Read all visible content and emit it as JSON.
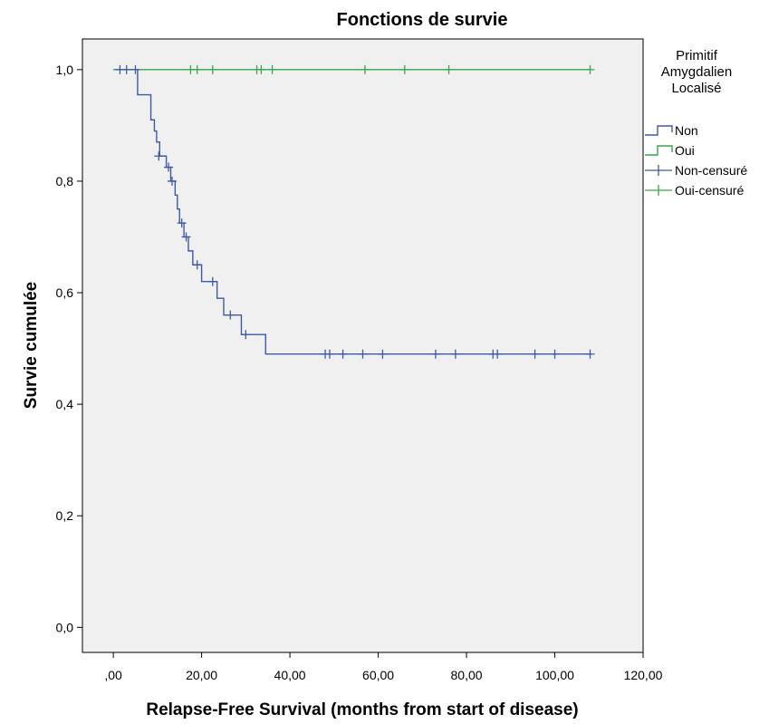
{
  "chart_data": {
    "type": "line",
    "subtype": "kaplan-meier step survival curve",
    "title": "Fonctions de survie",
    "xlabel": "Relapse-Free Survival (months from start of disease)",
    "ylabel": "Survie cumulée",
    "xlim": [
      -7,
      120
    ],
    "ylim": [
      -0.045,
      1.055
    ],
    "x_ticks": [
      0,
      20,
      40,
      60,
      80,
      100,
      120
    ],
    "x_tick_labels": [
      ",00",
      "20,00",
      "40,00",
      "60,00",
      "80,00",
      "100,00",
      "120,00"
    ],
    "y_ticks": [
      0,
      0.2,
      0.4,
      0.6,
      0.8,
      1.0
    ],
    "y_tick_labels": [
      "0,0",
      "0,2",
      "0,4",
      "0,6",
      "0,8",
      "1,0"
    ],
    "grid": false,
    "background_color": "#f0f0f0",
    "legend": {
      "title_lines": [
        "Primitif",
        "Amygdalien",
        "Localisé"
      ],
      "placement": "right, outside plot",
      "entries": [
        {
          "label": "Non",
          "kind": "step",
          "color": "#3d5aa8"
        },
        {
          "label": "Oui",
          "kind": "step",
          "color": "#3aa64a"
        },
        {
          "label": "Non-censuré",
          "kind": "censor",
          "color": "#3d5aa8"
        },
        {
          "label": "Oui-censuré",
          "kind": "censor",
          "color": "#3aa64a"
        }
      ]
    },
    "series": [
      {
        "name": "Non",
        "color": "#3d5aa8",
        "steps": [
          [
            0,
            1.0
          ],
          [
            5.5,
            0.955
          ],
          [
            8.5,
            0.91
          ],
          [
            9.3,
            0.89
          ],
          [
            9.8,
            0.87
          ],
          [
            10.5,
            0.845
          ],
          [
            12,
            0.825
          ],
          [
            13,
            0.8
          ],
          [
            14,
            0.775
          ],
          [
            14.5,
            0.75
          ],
          [
            15,
            0.725
          ],
          [
            16,
            0.7
          ],
          [
            17,
            0.675
          ],
          [
            18,
            0.65
          ],
          [
            20,
            0.62
          ],
          [
            23.5,
            0.59
          ],
          [
            25,
            0.56
          ],
          [
            29,
            0.525
          ],
          [
            34.5,
            0.49
          ],
          [
            108,
            0.49
          ]
        ],
        "censored": [
          [
            1.5,
            1.0
          ],
          [
            3,
            1.0
          ],
          [
            5,
            1.0
          ],
          [
            10.3,
            0.845
          ],
          [
            12.5,
            0.825
          ],
          [
            13.3,
            0.8
          ],
          [
            15.5,
            0.725
          ],
          [
            16.5,
            0.7
          ],
          [
            19,
            0.65
          ],
          [
            22.5,
            0.62
          ],
          [
            26.5,
            0.56
          ],
          [
            30,
            0.525
          ],
          [
            48,
            0.49
          ],
          [
            49,
            0.49
          ],
          [
            52,
            0.49
          ],
          [
            56.5,
            0.49
          ],
          [
            61,
            0.49
          ],
          [
            73,
            0.49
          ],
          [
            77.5,
            0.49
          ],
          [
            86,
            0.49
          ],
          [
            87,
            0.49
          ],
          [
            95.5,
            0.49
          ],
          [
            100,
            0.49
          ],
          [
            108,
            0.49
          ]
        ]
      },
      {
        "name": "Oui",
        "color": "#3aa64a",
        "steps": [
          [
            0,
            1.0
          ],
          [
            108,
            1.0
          ]
        ],
        "censored": [
          [
            17.5,
            1.0
          ],
          [
            19,
            1.0
          ],
          [
            22.5,
            1.0
          ],
          [
            32.5,
            1.0
          ],
          [
            33.5,
            1.0
          ],
          [
            36,
            1.0
          ],
          [
            57,
            1.0
          ],
          [
            66,
            1.0
          ],
          [
            76,
            1.0
          ],
          [
            108,
            1.0
          ]
        ]
      }
    ]
  }
}
